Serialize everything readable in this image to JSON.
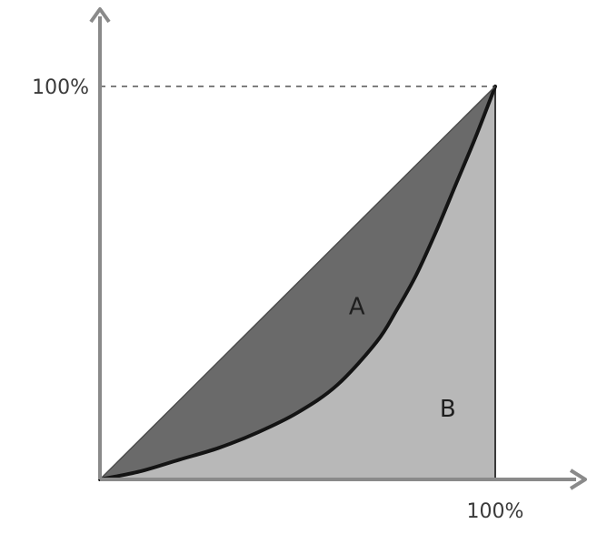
{
  "chart_data": {
    "type": "area",
    "title": "",
    "xlabel": "",
    "ylabel": "",
    "xlim": [
      0,
      100
    ],
    "ylim": [
      0,
      100
    ],
    "x_tick_labels": [
      "100%"
    ],
    "y_tick_labels": [
      "100%"
    ],
    "region_labels": [
      "A",
      "B"
    ],
    "equality_line": {
      "x": [
        0,
        100
      ],
      "y": [
        0,
        100
      ]
    },
    "curve": {
      "x": [
        0,
        10,
        20,
        30,
        40,
        50,
        60,
        70,
        75,
        80,
        85,
        90,
        95,
        100
      ],
      "y": [
        0,
        2,
        5,
        8,
        12,
        17,
        24,
        35,
        43,
        52,
        63,
        75,
        87,
        100
      ]
    },
    "colors": {
      "area_a": "#6b6b6b",
      "area_b": "#b8b8b8",
      "curve": "#141414",
      "axis": "#8a8a8a",
      "guide": "#555555"
    },
    "grid": false,
    "legend": "none"
  }
}
